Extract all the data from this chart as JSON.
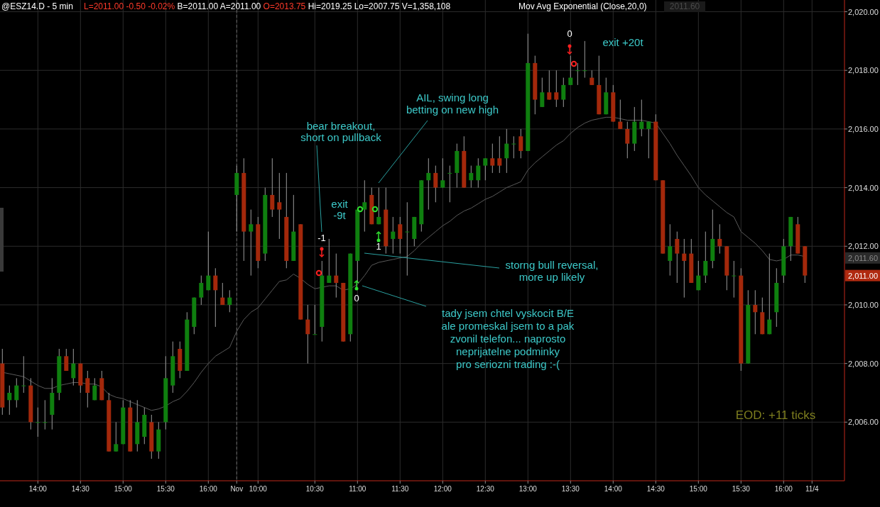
{
  "chart_data": {
    "type": "candlestick",
    "title": "@ESZ14.D - 5 min",
    "subtitle": "L=2011.00 -0.50 -0.02% B=2011.00 A=2011.00 O=2013.75 Hi=2019.25 Lo=2007.75 V=1,358,108",
    "categories": [
      null,
      null,
      null,
      null,
      null,
      "14:00",
      null,
      null,
      null,
      null,
      null,
      "14:30",
      null,
      null,
      null,
      null,
      null,
      "15:00",
      null,
      null,
      null,
      null,
      null,
      "15:30",
      null,
      null,
      null,
      null,
      null,
      "16:00",
      null,
      null,
      null,
      "Nov",
      null,
      null,
      "10:00",
      null,
      null,
      null,
      null,
      null,
      null,
      null,
      "10:30",
      null,
      null,
      null,
      null,
      null,
      "11:00",
      null,
      null,
      null,
      null,
      null,
      "11:30",
      null,
      null,
      null,
      null,
      null,
      "12:00",
      null,
      null,
      null,
      null,
      null,
      "12:30",
      null,
      null,
      null,
      null,
      null,
      "13:00",
      null,
      null,
      null,
      null,
      null,
      "13:30",
      null,
      null,
      null,
      null,
      null,
      "14:00",
      null,
      null,
      null,
      null,
      null,
      "14:30",
      null,
      null,
      null,
      null,
      null,
      "15:00",
      null,
      null,
      null,
      null,
      null,
      "15:30",
      null,
      null,
      null,
      null,
      null,
      "16:00",
      null,
      null,
      null,
      "11/4"
    ],
    "ohlc": [
      [
        2008.0,
        2008.5,
        2006.25,
        2006.5
      ],
      [
        2006.75,
        2007.25,
        2006.25,
        2007.0
      ],
      [
        2006.75,
        2007.5,
        2006.5,
        2007.25
      ],
      [
        2007.25,
        2008.25,
        2007.0,
        2007.25
      ],
      [
        2007.25,
        2007.5,
        2005.75,
        2006.0
      ],
      [
        2006.0,
        2006.5,
        2005.5,
        2006.0
      ],
      [
        2006.0,
        2006.75,
        2005.75,
        2006.0
      ],
      [
        2006.25,
        2007.5,
        2005.75,
        2007.0
      ],
      [
        2007.0,
        2008.5,
        2006.75,
        2008.25
      ],
      [
        2008.25,
        2008.5,
        2007.75,
        2007.75
      ],
      [
        2007.5,
        2008.5,
        2007.25,
        2008.0
      ],
      [
        2008.0,
        2008.0,
        2007.0,
        2007.25
      ],
      [
        2007.5,
        2007.75,
        2006.5,
        2007.0
      ],
      [
        2006.75,
        2007.5,
        2006.75,
        2007.25
      ],
      [
        2007.5,
        2007.75,
        2006.75,
        2006.75
      ],
      [
        2006.75,
        2007.0,
        2005.0,
        2005.0
      ],
      [
        2005.0,
        2006.0,
        2005.0,
        2005.25
      ],
      [
        2005.25,
        2006.75,
        2005.25,
        2006.5
      ],
      [
        2006.5,
        2006.75,
        2005.0,
        2005.0
      ],
      [
        2005.25,
        2006.75,
        2005.0,
        2006.0
      ],
      [
        2005.5,
        2006.5,
        2005.25,
        2006.25
      ],
      [
        2006.0,
        2006.25,
        2004.75,
        2005.0
      ],
      [
        2005.0,
        2006.0,
        2004.75,
        2005.75
      ],
      [
        2006.0,
        2008.25,
        2005.75,
        2007.5
      ],
      [
        2007.25,
        2008.75,
        2007.0,
        2008.25
      ],
      [
        2008.5,
        2008.75,
        2007.5,
        2007.75
      ],
      [
        2007.75,
        2009.75,
        2007.75,
        2009.5
      ],
      [
        2009.25,
        2010.25,
        2009.0,
        2010.25
      ],
      [
        2010.25,
        2011.0,
        2010.0,
        2010.75
      ],
      [
        2010.5,
        2012.5,
        2010.5,
        2011.0
      ],
      [
        2011.0,
        2011.25,
        2009.25,
        2010.5
      ],
      [
        2010.25,
        2010.75,
        2010.0,
        2010.0
      ],
      [
        2010.0,
        2010.5,
        2009.75,
        2010.25
      ],
      [
        2013.75,
        2014.75,
        2012.5,
        2014.5
      ],
      [
        2014.5,
        2015.0,
        2011.5,
        2012.5
      ],
      [
        2012.5,
        2013.25,
        2011.0,
        2012.75
      ],
      [
        2012.75,
        2013.0,
        2011.25,
        2011.5
      ],
      [
        2011.75,
        2014.0,
        2011.5,
        2013.75
      ],
      [
        2013.75,
        2015.0,
        2013.0,
        2013.25
      ],
      [
        2013.5,
        2014.5,
        2012.25,
        2013.25
      ],
      [
        2013.0,
        2014.5,
        2011.25,
        2011.5
      ],
      [
        2011.5,
        2013.75,
        2011.5,
        2012.5
      ],
      [
        2012.75,
        2012.75,
        2009.5,
        2009.5
      ],
      [
        2009.5,
        2010.0,
        2008.0,
        2009.0
      ],
      [
        2009.0,
        2010.0,
        2009.0,
        2009.0
      ],
      [
        2009.25,
        2011.5,
        2008.75,
        2011.0
      ],
      [
        2010.75,
        2012.25,
        2010.75,
        2011.0
      ],
      [
        2011.0,
        2011.75,
        2010.25,
        2010.75
      ],
      [
        2010.75,
        2010.75,
        2008.75,
        2008.75
      ],
      [
        2009.0,
        2011.75,
        2008.75,
        2011.75
      ],
      [
        2011.5,
        2013.25,
        2010.75,
        2013.25
      ],
      [
        2013.25,
        2014.25,
        2012.5,
        2013.5
      ],
      [
        2013.75,
        2014.0,
        2012.75,
        2012.75
      ],
      [
        2012.75,
        2014.0,
        2012.75,
        2013.0
      ],
      [
        2013.25,
        2014.0,
        2011.75,
        2012.0
      ],
      [
        2012.25,
        2013.0,
        2011.75,
        2012.5
      ],
      [
        2012.75,
        2013.0,
        2011.75,
        2012.25
      ],
      [
        2012.5,
        2013.5,
        2011.0,
        2012.5
      ],
      [
        2012.25,
        2013.0,
        2012.0,
        2013.0
      ],
      [
        2012.75,
        2014.25,
        2012.5,
        2014.25
      ],
      [
        2014.25,
        2015.0,
        2013.25,
        2014.5
      ],
      [
        2014.5,
        2014.75,
        2013.5,
        2014.0
      ],
      [
        2014.0,
        2015.0,
        2014.0,
        2014.25
      ],
      [
        2014.5,
        2014.75,
        2013.5,
        2014.5
      ],
      [
        2014.5,
        2015.5,
        2014.0,
        2015.25
      ],
      [
        2015.25,
        2015.75,
        2014.0,
        2014.0
      ],
      [
        2014.25,
        2014.75,
        2014.0,
        2014.5
      ],
      [
        2014.25,
        2015.0,
        2014.0,
        2014.75
      ],
      [
        2014.75,
        2015.0,
        2014.25,
        2015.0
      ],
      [
        2015.0,
        2015.5,
        2014.5,
        2014.75
      ],
      [
        2015.0,
        2015.75,
        2014.5,
        2014.75
      ],
      [
        2015.0,
        2016.0,
        2014.5,
        2015.5
      ],
      [
        2015.5,
        2015.75,
        2015.0,
        2015.5
      ],
      [
        2015.75,
        2016.0,
        2015.0,
        2015.25
      ],
      [
        2015.25,
        2019.25,
        2015.25,
        2018.25
      ],
      [
        2018.25,
        2018.5,
        2016.5,
        2017.0
      ],
      [
        2016.75,
        2017.75,
        2016.75,
        2017.25
      ],
      [
        2017.25,
        2018.0,
        2017.0,
        2017.0
      ],
      [
        2017.25,
        2018.0,
        2016.75,
        2017.0
      ],
      [
        2017.0,
        2017.75,
        2016.75,
        2017.5
      ],
      [
        2017.5,
        2018.5,
        2017.5,
        2017.75
      ],
      [
        2018.0,
        2018.25,
        2017.5,
        2018.0
      ],
      [
        2018.0,
        2019.0,
        2017.75,
        2018.0
      ],
      [
        2017.75,
        2018.0,
        2017.5,
        2017.5
      ],
      [
        2017.5,
        2018.5,
        2016.5,
        2016.5
      ],
      [
        2016.5,
        2017.75,
        2016.5,
        2017.25
      ],
      [
        2017.25,
        2017.5,
        2016.25,
        2016.25
      ],
      [
        2016.25,
        2017.0,
        2016.0,
        2016.0
      ],
      [
        2016.0,
        2016.25,
        2015.0,
        2015.5
      ],
      [
        2015.5,
        2016.75,
        2015.25,
        2016.25
      ],
      [
        2016.0,
        2017.0,
        2015.75,
        2016.25
      ],
      [
        2016.0,
        2016.25,
        2015.0,
        2016.25
      ],
      [
        2016.25,
        2016.5,
        2014.25,
        2014.25
      ],
      [
        2014.25,
        2014.25,
        2011.75,
        2011.75
      ],
      [
        2011.5,
        2012.75,
        2011.0,
        2012.0
      ],
      [
        2012.25,
        2012.5,
        2010.75,
        2011.75
      ],
      [
        2011.75,
        2012.25,
        2010.25,
        2011.5
      ],
      [
        2011.75,
        2012.25,
        2010.75,
        2010.75
      ],
      [
        2010.5,
        2011.5,
        2010.5,
        2011.0
      ],
      [
        2011.0,
        2012.5,
        2010.75,
        2011.5
      ],
      [
        2011.5,
        2013.25,
        2011.25,
        2012.25
      ],
      [
        2012.25,
        2012.75,
        2011.75,
        2012.0
      ],
      [
        2012.0,
        2012.0,
        2010.5,
        2011.0
      ],
      [
        2011.0,
        2011.5,
        2010.25,
        2011.0
      ],
      [
        2011.0,
        2011.25,
        2007.75,
        2008.0
      ],
      [
        2008.0,
        2010.5,
        2008.0,
        2010.0
      ],
      [
        2010.0,
        2010.5,
        2009.0,
        2009.75
      ],
      [
        2009.75,
        2010.25,
        2009.0,
        2009.0
      ],
      [
        2009.0,
        2011.75,
        2009.0,
        2009.5
      ],
      [
        2009.75,
        2011.25,
        2009.25,
        2010.75
      ],
      [
        2011.0,
        2012.25,
        2010.75,
        2012.0
      ],
      [
        2012.0,
        2013.0,
        2011.5,
        2013.0
      ],
      [
        2012.75,
        2013.0,
        2011.75,
        2011.75
      ],
      [
        2012.0,
        2012.0,
        2010.75,
        2011.0
      ],
      null
    ],
    "series": [
      {
        "name": "Mov Avg Exponential (Close,20,0)",
        "type": "line",
        "color": "#5a5a5a",
        "values": [
          2007.7,
          2007.65,
          2007.6,
          2007.55,
          2007.4,
          2007.25,
          2007.15,
          2007.15,
          2007.25,
          2007.3,
          2007.35,
          2007.35,
          2007.3,
          2007.3,
          2007.2,
          2006.95,
          2006.85,
          2006.8,
          2006.7,
          2006.6,
          2006.5,
          2006.4,
          2006.45,
          2006.55,
          2006.7,
          2006.8,
          2007.05,
          2007.35,
          2007.7,
          2008.0,
          2008.25,
          2008.4,
          2008.55,
          2009.1,
          2009.5,
          2009.75,
          2009.9,
          2010.2,
          2010.5,
          2010.8,
          2010.85,
          2011.05,
          2010.9,
          2010.7,
          2010.55,
          2010.6,
          2010.65,
          2010.65,
          2010.5,
          2010.55,
          2010.7,
          2011.0,
          2011.35,
          2011.45,
          2011.5,
          2011.55,
          2011.6,
          2011.65,
          2011.85,
          2012.1,
          2012.3,
          2012.5,
          2012.7,
          2012.85,
          2013.05,
          2013.2,
          2013.3,
          2013.45,
          2013.6,
          2013.7,
          2013.85,
          2014.0,
          2014.1,
          2014.2,
          2014.6,
          2014.85,
          2015.05,
          2015.25,
          2015.45,
          2015.6,
          2015.85,
          2016.05,
          2016.2,
          2016.3,
          2016.35,
          2016.4,
          2016.4,
          2016.35,
          2016.3,
          2016.3,
          2016.3,
          2016.25,
          2016.2,
          2015.85,
          2015.5,
          2015.1,
          2014.75,
          2014.4,
          2014.0,
          2013.75,
          2013.55,
          2013.35,
          2013.15,
          2013.0,
          2012.5,
          2012.3,
          2012.1,
          2011.85,
          2011.55,
          2011.5,
          2011.55,
          2011.7,
          2011.7,
          2011.65,
          null
        ]
      }
    ],
    "ylim": [
      2004,
      2020.4
    ],
    "yticks": [
      {
        "value": 2006,
        "label": "2,006.00"
      },
      {
        "value": 2008,
        "label": "2,008.00"
      },
      {
        "value": 2010,
        "label": "2,010.00"
      },
      {
        "value": 2012,
        "label": "2,012.00"
      },
      {
        "value": 2014,
        "label": "2,014.00"
      },
      {
        "value": 2016,
        "label": "2,016.00"
      },
      {
        "value": 2018,
        "label": "2,018.00"
      },
      {
        "value": 2020,
        "label": "2,020.00"
      }
    ],
    "grid": true,
    "ref_lines": [
      {
        "axis": "x",
        "value": "Nov",
        "line_style": "dashed",
        "color": "#666666"
      }
    ],
    "annotations": [
      "bear breakout,\nshort on pullback",
      "AIL, swing long\nbetting on new high",
      "exit\n-9t",
      "storng bull reversal,\nmore up likely",
      "tady jsem chtel vyskocit B/E\nale promeskal jsem to a pak\nzvonil telefon... naprosto\nneprijatelne podminky\npro seriozni trading :-(",
      "exit +20t",
      "EOD: +11 ticks",
      "-1",
      "1",
      "0",
      "0",
      "2011.60",
      "2,011.60",
      "2,011.00"
    ]
  }
}
